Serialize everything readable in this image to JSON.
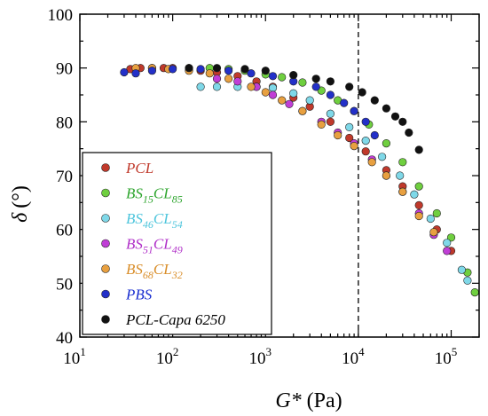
{
  "chart_data": {
    "type": "scatter",
    "xscale": "log",
    "xlim": [
      10,
      200000
    ],
    "ylim": [
      40,
      100
    ],
    "xlabel_main": "G*",
    "xlabel_unit": "(Pa)",
    "ylabel_main": "δ",
    "ylabel_unit": "(°)",
    "x_ticks": [
      {
        "value": 10,
        "base": "10",
        "exp": "1"
      },
      {
        "value": 100,
        "base": "10",
        "exp": "2"
      },
      {
        "value": 1000,
        "base": "10",
        "exp": "3"
      },
      {
        "value": 10000,
        "base": "10",
        "exp": "4"
      },
      {
        "value": 100000,
        "base": "10",
        "exp": "5"
      }
    ],
    "y_ticks": [
      "40",
      "50",
      "60",
      "70",
      "80",
      "90",
      "100"
    ],
    "vline_x": 10000,
    "legend_position": "bottom-left",
    "series": [
      {
        "label": "PCL",
        "parts": [
          {
            "t": "PCL"
          }
        ],
        "color": "#c0392b",
        "text_color": "#c0392b",
        "points": [
          [
            35,
            89.8
          ],
          [
            45,
            90
          ],
          [
            60,
            90
          ],
          [
            80,
            90
          ],
          [
            100,
            90
          ],
          [
            150,
            89.8
          ],
          [
            200,
            89.5
          ],
          [
            300,
            89.2
          ],
          [
            500,
            88.5
          ],
          [
            800,
            87.5
          ],
          [
            1200,
            86.5
          ],
          [
            2000,
            84.5
          ],
          [
            3000,
            82.8
          ],
          [
            5000,
            80
          ],
          [
            8000,
            77
          ],
          [
            12000,
            74.5
          ],
          [
            20000,
            71
          ],
          [
            30000,
            68
          ],
          [
            45000,
            64.5
          ],
          [
            70000,
            60
          ],
          [
            100000,
            56
          ]
        ]
      },
      {
        "label": "BS15CL85",
        "parts": [
          {
            "t": "BS"
          },
          {
            "t": "15",
            "sub": true
          },
          {
            "t": "CL"
          },
          {
            "t": "85",
            "sub": true
          }
        ],
        "color": "#6fcf3f",
        "text_color": "#2ea52e",
        "points": [
          [
            150,
            90
          ],
          [
            250,
            90
          ],
          [
            400,
            89.8
          ],
          [
            600,
            89.5
          ],
          [
            1000,
            88.8
          ],
          [
            1500,
            88.3
          ],
          [
            2500,
            87.3
          ],
          [
            4000,
            85.8
          ],
          [
            6000,
            84
          ],
          [
            9000,
            82
          ],
          [
            13000,
            79.5
          ],
          [
            20000,
            76
          ],
          [
            30000,
            72.5
          ],
          [
            45000,
            68
          ],
          [
            70000,
            63
          ],
          [
            100000,
            58.5
          ],
          [
            150000,
            52
          ],
          [
            180000,
            48.3
          ]
        ]
      },
      {
        "label": "BS46CL54",
        "parts": [
          {
            "t": "BS"
          },
          {
            "t": "46",
            "sub": true
          },
          {
            "t": "CL"
          },
          {
            "t": "54",
            "sub": true
          }
        ],
        "color": "#7fd8e8",
        "text_color": "#4ec5dc",
        "points": [
          [
            200,
            86.5
          ],
          [
            300,
            86.5
          ],
          [
            500,
            86.5
          ],
          [
            800,
            86.5
          ],
          [
            1200,
            86.3
          ],
          [
            2000,
            85.3
          ],
          [
            3000,
            84
          ],
          [
            5000,
            81.5
          ],
          [
            8000,
            79
          ],
          [
            12000,
            76.5
          ],
          [
            18000,
            73.5
          ],
          [
            28000,
            70
          ],
          [
            40000,
            66.5
          ],
          [
            60000,
            62
          ],
          [
            90000,
            57.5
          ],
          [
            130000,
            52.5
          ],
          [
            150000,
            50.5
          ]
        ]
      },
      {
        "label": "BS51CL49",
        "parts": [
          {
            "t": "BS"
          },
          {
            "t": "51",
            "sub": true
          },
          {
            "t": "CL"
          },
          {
            "t": "49",
            "sub": true
          }
        ],
        "color": "#c03ed6",
        "text_color": "#b030c8",
        "points": [
          [
            300,
            88
          ],
          [
            500,
            87.5
          ],
          [
            800,
            86.5
          ],
          [
            1200,
            85
          ],
          [
            1800,
            83.3
          ],
          [
            2500,
            82
          ],
          [
            4000,
            80
          ],
          [
            6000,
            78
          ],
          [
            9000,
            76
          ],
          [
            14000,
            73
          ],
          [
            20000,
            70
          ],
          [
            30000,
            67
          ],
          [
            45000,
            63
          ],
          [
            65000,
            59
          ],
          [
            90000,
            56
          ]
        ]
      },
      {
        "label": "BS68CL32",
        "parts": [
          {
            "t": "BS"
          },
          {
            "t": "68",
            "sub": true
          },
          {
            "t": "CL"
          },
          {
            "t": "32",
            "sub": true
          }
        ],
        "color": "#e8a040",
        "text_color": "#d98e2a",
        "points": [
          [
            40,
            90
          ],
          [
            60,
            90
          ],
          [
            90,
            89.8
          ],
          [
            150,
            89.5
          ],
          [
            250,
            89
          ],
          [
            400,
            88
          ],
          [
            700,
            86.5
          ],
          [
            1000,
            85.5
          ],
          [
            1500,
            84
          ],
          [
            2500,
            82
          ],
          [
            4000,
            79.5
          ],
          [
            6000,
            77.5
          ],
          [
            9000,
            75.5
          ],
          [
            14000,
            72.5
          ],
          [
            20000,
            70
          ],
          [
            30000,
            67
          ],
          [
            45000,
            62.5
          ],
          [
            65000,
            59.5
          ]
        ]
      },
      {
        "label": "PBS",
        "parts": [
          {
            "t": "PBS"
          }
        ],
        "color": "#2330c8",
        "text_color": "#1a2fd0",
        "points": [
          [
            30,
            89.2
          ],
          [
            40,
            89
          ],
          [
            60,
            89.5
          ],
          [
            100,
            89.8
          ],
          [
            200,
            89.8
          ],
          [
            400,
            89.5
          ],
          [
            700,
            89
          ],
          [
            1200,
            88.5
          ],
          [
            2000,
            87.5
          ],
          [
            3500,
            86.5
          ],
          [
            5000,
            85
          ],
          [
            7000,
            83.5
          ],
          [
            9000,
            82
          ],
          [
            12000,
            80
          ],
          [
            15000,
            77.5
          ]
        ]
      },
      {
        "label": "PCL-Capa 6250",
        "parts": [
          {
            "t": "PCL-Capa 6250"
          }
        ],
        "color": "#111111",
        "text_color": "#000000",
        "points": [
          [
            150,
            90
          ],
          [
            300,
            90
          ],
          [
            600,
            89.8
          ],
          [
            1000,
            89.5
          ],
          [
            2000,
            88.7
          ],
          [
            3500,
            88
          ],
          [
            5000,
            87.5
          ],
          [
            8000,
            86.5
          ],
          [
            11000,
            85.5
          ],
          [
            15000,
            84
          ],
          [
            20000,
            82.5
          ],
          [
            25000,
            81
          ],
          [
            30000,
            80
          ],
          [
            35000,
            78
          ],
          [
            45000,
            74.8
          ]
        ]
      }
    ]
  }
}
